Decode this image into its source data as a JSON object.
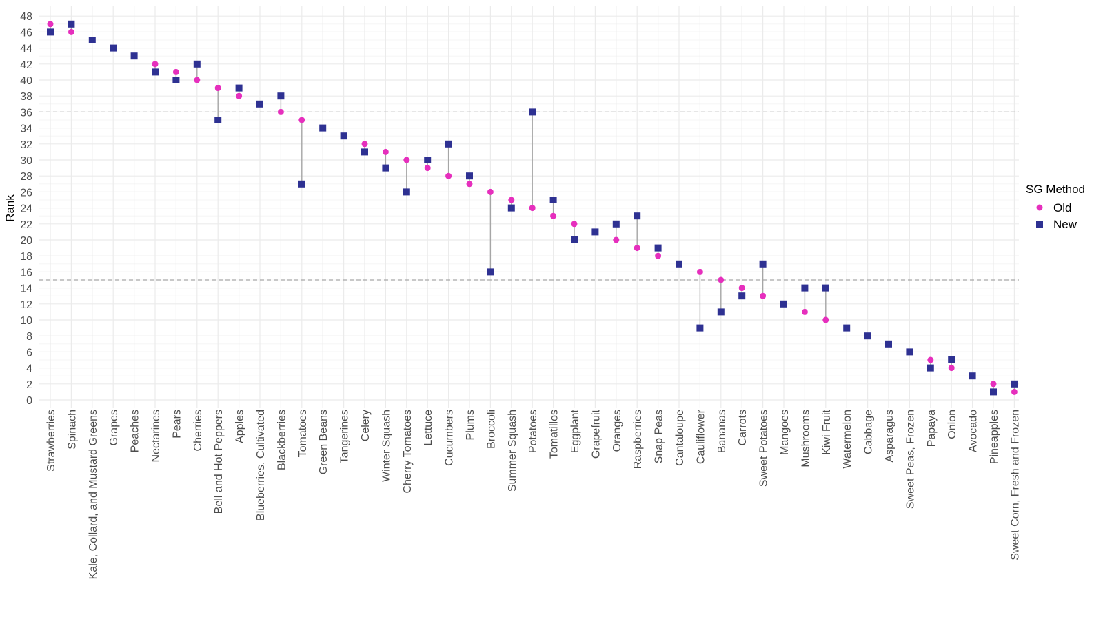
{
  "chart_data": {
    "type": "scatter",
    "ylabel": "Rank",
    "xlabel": "",
    "ylim": [
      0,
      48
    ],
    "ytick_step": 2,
    "grid": true,
    "reference_lines_y": [
      36,
      15
    ],
    "categories": [
      "Strawberries",
      "Spinach",
      "Kale, Collard, and Mustard Greens",
      "Grapes",
      "Peaches",
      "Nectarines",
      "Pears",
      "Cherries",
      "Bell and Hot Peppers",
      "Apples",
      "Blueberries, Cultivated",
      "Blackberries",
      "Tomatoes",
      "Green Beans",
      "Tangerines",
      "Celery",
      "Winter Squash",
      "Cherry Tomatoes",
      "Lettuce",
      "Cucumbers",
      "Plums",
      "Broccoli",
      "Summer Squash",
      "Potatoes",
      "Tomatillos",
      "Eggplant",
      "Grapefruit",
      "Oranges",
      "Raspberries",
      "Snap Peas",
      "Cantaloupe",
      "Cauliflower",
      "Bananas",
      "Carrots",
      "Sweet Potatoes",
      "Mangoes",
      "Mushrooms",
      "Kiwi Fruit",
      "Watermelon",
      "Cabbage",
      "Asparagus",
      "Sweet Peas, Frozen",
      "Papaya",
      "Onion",
      "Avocado",
      "Pineapples",
      "Sweet Corn, Fresh and Frozen"
    ],
    "legend": {
      "title": "SG Method",
      "placement": "right"
    },
    "series": [
      {
        "name": "Old",
        "marker": "circle",
        "color": "#e62fbd",
        "values": [
          47,
          46,
          45,
          44,
          43,
          42,
          41,
          40,
          39,
          38,
          37,
          36,
          35,
          34,
          33,
          32,
          31,
          30,
          29,
          28,
          27,
          26,
          25,
          24,
          23,
          22,
          21,
          20,
          19,
          18,
          17,
          16,
          15,
          14,
          13,
          12,
          11,
          10,
          9,
          8,
          7,
          6,
          5,
          4,
          3,
          2,
          1
        ]
      },
      {
        "name": "New",
        "marker": "square",
        "color": "#2e3192",
        "values": [
          46,
          47,
          45,
          44,
          43,
          41,
          40,
          42,
          35,
          39,
          37,
          38,
          27,
          34,
          33,
          31,
          29,
          26,
          30,
          32,
          28,
          16,
          24,
          36,
          25,
          20,
          21,
          22,
          23,
          19,
          17,
          9,
          11,
          13,
          17,
          12,
          14,
          14,
          9,
          8,
          7,
          6,
          4,
          5,
          3,
          1,
          2
        ]
      }
    ]
  },
  "colors": {
    "old": "#e62fbd",
    "new": "#2e3192",
    "grid": "#ebebeb",
    "connector": "#a6a6a6",
    "reference_line": "#a6a6a6"
  }
}
